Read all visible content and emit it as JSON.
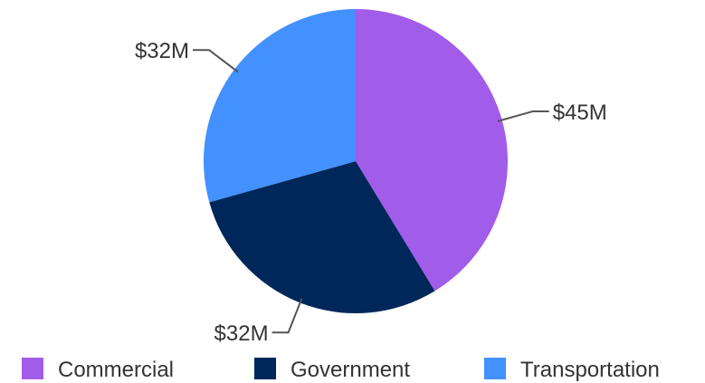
{
  "chart_data": {
    "type": "pie",
    "title": "",
    "start_angle_deg": 0,
    "direction": "clockwise",
    "legend_position": "bottom",
    "series": [
      {
        "name": "Commercial",
        "value": 45,
        "label": "$45M",
        "color": "#a25cea"
      },
      {
        "name": "Government",
        "value": 32,
        "label": "$32M",
        "color": "#00275a"
      },
      {
        "name": "Transportation",
        "value": 32,
        "label": "$32M",
        "color": "#4390ff"
      }
    ]
  }
}
